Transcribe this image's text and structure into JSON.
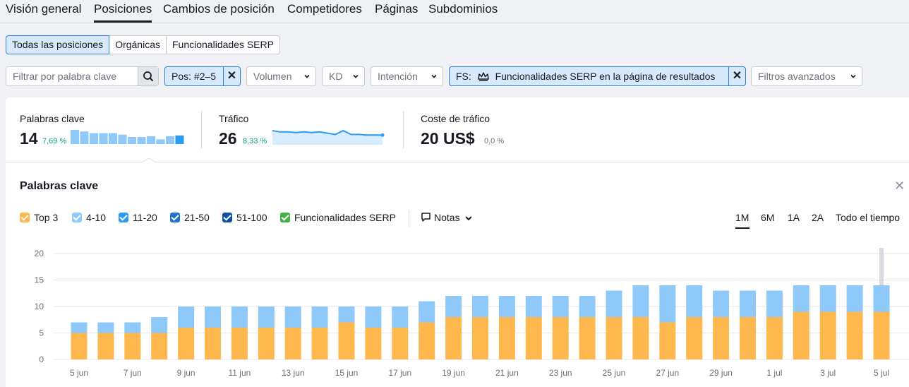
{
  "tabs": [
    "Visión general",
    "Posiciones",
    "Cambios de posición",
    "Competidores",
    "Páginas",
    "Subdominios"
  ],
  "active_tab": "Posiciones",
  "segments": [
    "Todas las posiciones",
    "Orgánicas",
    "Funcionalidades SERP"
  ],
  "active_segment": "Todas las posiciones",
  "filters": {
    "keyword_placeholder": "Filtrar por palabra clave",
    "pos": "Pos: #2–5",
    "volume": "Volumen",
    "kd": "KD",
    "intent": "Intención",
    "fs_prefix": "FS:",
    "fs_label": "Funcionalidades SERP en la página de resultados",
    "advanced": "Filtros avanzados"
  },
  "metrics": {
    "keywords": {
      "label": "Palabras clave",
      "value": "14",
      "change": "7,69 %"
    },
    "traffic": {
      "label": "Tráfico",
      "value": "26",
      "change": "8,33 %"
    },
    "cost": {
      "label": "Coste de tráfico",
      "value": "20 US$",
      "change": "0,0 %"
    }
  },
  "sparkline_keywords": [
    18,
    16,
    14,
    14,
    14,
    12,
    9,
    9,
    10,
    6,
    10,
    11
  ],
  "sparkline_traffic": [
    20,
    18,
    18,
    17,
    18,
    17,
    18,
    16,
    14,
    20,
    14,
    14,
    13,
    13,
    13
  ],
  "chart_title": "Palabras clave",
  "legend": [
    {
      "label": "Top 3",
      "color": "#ffb84d"
    },
    {
      "label": "4-10",
      "color": "#8fc9f9"
    },
    {
      "label": "11-20",
      "color": "#2d9bf0"
    },
    {
      "label": "21-50",
      "color": "#1e73d6"
    },
    {
      "label": "51-100",
      "color": "#0b4fa8"
    },
    {
      "label": "Funcionalidades SERP",
      "color": "#44b045"
    }
  ],
  "notes_label": "Notas",
  "periods": [
    "1M",
    "6M",
    "1A",
    "2A",
    "Todo el tiempo"
  ],
  "active_period": "1M",
  "chart_data": {
    "type": "bar",
    "stacked": true,
    "categories": [
      "5 jun",
      "6 jun",
      "7 jun",
      "8 jun",
      "9 jun",
      "10 jun",
      "11 jun",
      "12 jun",
      "13 jun",
      "14 jun",
      "15 jun",
      "16 jun",
      "17 jun",
      "18 jun",
      "19 jun",
      "20 jun",
      "21 jun",
      "22 jun",
      "23 jun",
      "24 jun",
      "25 jun",
      "26 jun",
      "27 jun",
      "28 jun",
      "29 jun",
      "30 jun",
      "1 jul",
      "2 jul",
      "3 jul",
      "4 jul",
      "5 jul"
    ],
    "x_tick_labels": [
      "5 jun",
      "7 jun",
      "9 jun",
      "11 jun",
      "13 jun",
      "15 jun",
      "17 jun",
      "19 jun",
      "21 jun",
      "23 jun",
      "25 jun",
      "27 jun",
      "29 jun",
      "1 jul",
      "3 jul",
      "5 jul"
    ],
    "series": [
      {
        "name": "Top 3",
        "color": "#ffb84d",
        "values": [
          5,
          5,
          5,
          5,
          6,
          6,
          6,
          6,
          6,
          6,
          7,
          6,
          6,
          7,
          8,
          8,
          8,
          8,
          8,
          8,
          8,
          8,
          7,
          8,
          8,
          8,
          8,
          9,
          9,
          9,
          9
        ]
      },
      {
        "name": "4-10",
        "color": "#8fc9f9",
        "values": [
          2,
          2,
          2,
          3,
          4,
          4,
          4,
          4,
          4,
          4,
          3,
          4,
          4,
          4,
          4,
          4,
          4,
          4,
          4,
          4,
          5,
          6,
          7,
          6,
          5,
          5,
          5,
          5,
          5,
          5,
          5
        ]
      }
    ],
    "ylim": [
      0,
      20
    ],
    "yticks": [
      0,
      5,
      10,
      15,
      20
    ],
    "grid": true
  }
}
